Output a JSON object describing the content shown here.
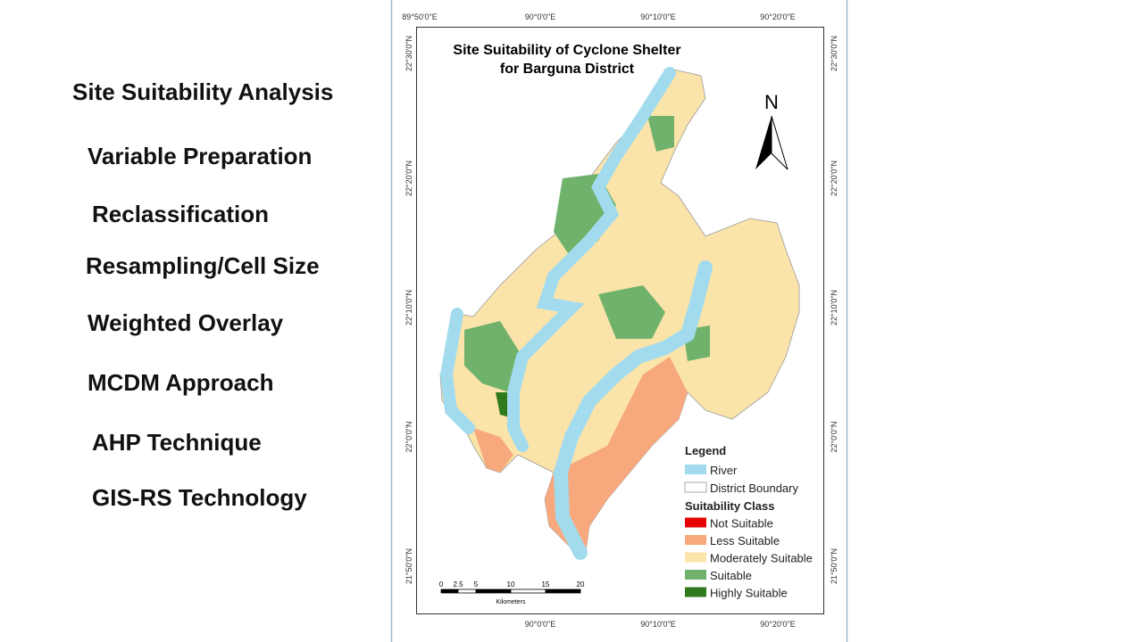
{
  "slide": {
    "items": [
      "Site Suitability Analysis",
      "Variable Preparation",
      "Reclassification",
      "Resampling/Cell Size",
      "Weighted Overlay",
      "MCDM Approach",
      "AHP Technique",
      "GIS-RS Technology"
    ]
  },
  "map": {
    "title": [
      "Site Suitability of Cyclone Shelter",
      "for Barguna District"
    ],
    "north": "N",
    "top_labels": [
      "89°50'0\"E",
      "90°0'0\"E",
      "90°10'0\"E",
      "90°20'0\"E"
    ],
    "bottom_labels": [
      "90°0'0\"E",
      "90°10'0\"E",
      "90°20'0\"E"
    ],
    "left_labels": [
      "22°30'0\"N",
      "22°20'0\"N",
      "22°10'0\"N",
      "22°0'0\"N",
      "21°50'0\"N"
    ],
    "right_labels": [
      "22°30'0\"N",
      "22°20'0\"N",
      "22°10'0\"N",
      "22°0'0\"N",
      "21°50'0\"N"
    ],
    "legend": {
      "title": "Legend",
      "items": [
        {
          "label": "River",
          "color": "#a3dbee"
        },
        {
          "label": "District Boundary",
          "color": "#ffffff"
        }
      ],
      "class_title": "Suitability Class",
      "classes": [
        {
          "label": "Not Suitable",
          "color": "#e60000"
        },
        {
          "label": "Less Suitable",
          "color": "#f7a97d"
        },
        {
          "label": "Moderately Suitable",
          "color": "#fbe4a9"
        },
        {
          "label": "Suitable",
          "color": "#70b26b"
        },
        {
          "label": "Highly Suitable",
          "color": "#2e7a1c"
        }
      ]
    },
    "scale": {
      "ticks": [
        "0",
        "2.5",
        "5",
        "10",
        "15",
        "20"
      ],
      "unit": "Kilometers"
    }
  }
}
